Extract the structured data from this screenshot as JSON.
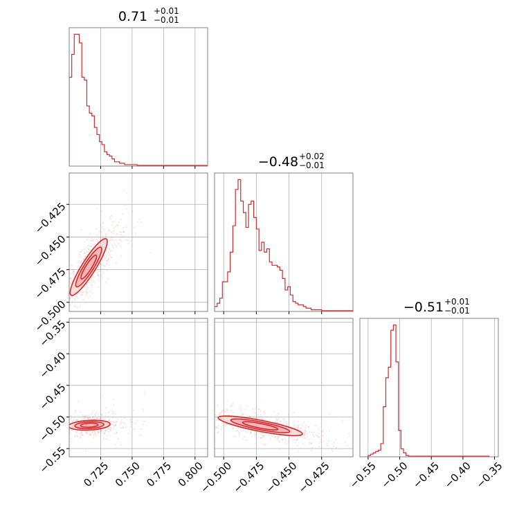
{
  "chart_data": {
    "type": "corner",
    "color": "#d62728",
    "parameters": [
      {
        "title": {
          "value": "0.71",
          "plus": "+0.01",
          "minus": "−0.01"
        },
        "range": [
          0.7,
          0.81
        ],
        "ticks": [
          0.725,
          0.75,
          0.775,
          0.8
        ],
        "tick_labels": [
          "0.725",
          "0.750",
          "0.775",
          "0.800"
        ],
        "hist_edges_start": 0.7,
        "hist_bin": 0.002,
        "hist_counts": [
          62,
          78,
          92,
          92,
          86,
          62,
          60,
          42,
          37,
          35,
          27,
          22,
          17,
          15,
          10,
          8,
          7,
          5,
          3,
          3,
          2,
          2,
          1,
          1,
          1,
          1,
          1,
          0.5,
          0.5,
          0.5,
          0.5,
          0.5,
          0.5,
          0.5,
          0.5,
          0.5,
          0.5,
          0.5,
          0.5,
          0.5,
          0.5,
          0.5,
          0.5,
          0.5,
          0.5,
          0.5,
          0.5,
          0.5,
          0.5,
          0.5,
          0.5,
          0.5,
          0.5,
          0.5,
          0.5
        ]
      },
      {
        "title": {
          "value": "−0.48",
          "plus": "+0.02",
          "minus": "−0.01"
        },
        "range": [
          -0.507,
          -0.401
        ],
        "ticks": [
          -0.5,
          -0.475,
          -0.45,
          -0.425
        ],
        "tick_labels": [
          "−0.500",
          "−0.475",
          "−0.450",
          "−0.425"
        ],
        "hist_edges_start": -0.507,
        "hist_bin": 0.002,
        "hist_counts": [
          3,
          5,
          8,
          18,
          18,
          24,
          36,
          52,
          74,
          80,
          67,
          60,
          51,
          65,
          67,
          57,
          50,
          37,
          42,
          36,
          38,
          30,
          28,
          28,
          27,
          25,
          20,
          13,
          15,
          10,
          6,
          5,
          4,
          4,
          3,
          2,
          2,
          1,
          1,
          1,
          1,
          0.5,
          0.5,
          0.5,
          0.5,
          0.5,
          0.5,
          0.5,
          0.5,
          0.5,
          0.5,
          0.5,
          0.5
        ]
      },
      {
        "title": {
          "value": "−0.51",
          "plus": "+0.01",
          "minus": "−0.01"
        },
        "range": [
          -0.563,
          -0.344
        ],
        "ticks": [
          -0.55,
          -0.5,
          -0.45,
          -0.4,
          -0.35
        ],
        "tick_labels": [
          "−0.55",
          "−0.50",
          "−0.45",
          "−0.40",
          "−0.35"
        ],
        "hist_edges_start": -0.55,
        "hist_bin": 0.004,
        "hist_counts": [
          1,
          2,
          3,
          4,
          5,
          10,
          38,
          60,
          68,
          96,
          100,
          72,
          20,
          6,
          3,
          1,
          0.5,
          0.5,
          0.5,
          0.5,
          0.5,
          0.5,
          0.5,
          0.5,
          0.5,
          0.5,
          0.5,
          0.5,
          0.5,
          0.5,
          0.5,
          0.5,
          0.5,
          0.5,
          0.5,
          0.5,
          0.5,
          0.5,
          0.5,
          0.5,
          0.5,
          0.5,
          0.5,
          0.5,
          0.5,
          0.5,
          0.5,
          0.5
        ]
      }
    ],
    "grid": true
  }
}
